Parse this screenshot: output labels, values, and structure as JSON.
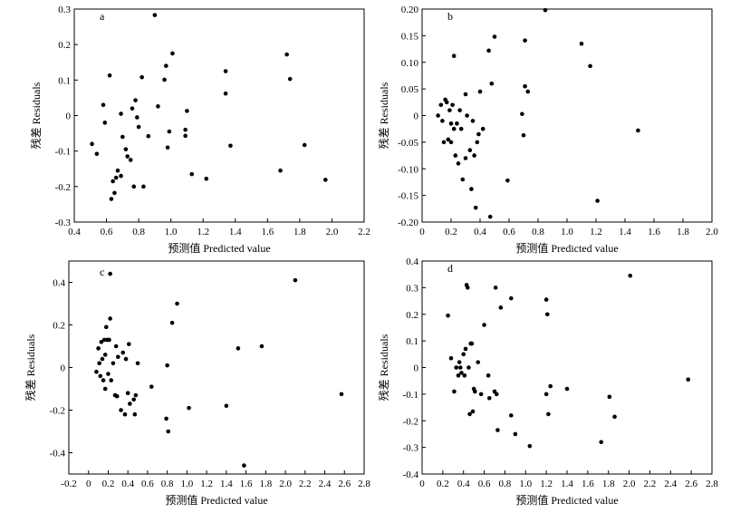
{
  "chart_data": [
    {
      "type": "scatter",
      "panel_label": "a",
      "xlabel": "预测值 Predicted value",
      "ylabel": "残差 Residuals",
      "xlim": [
        0.4,
        2.2
      ],
      "ylim": [
        -0.3,
        0.3
      ],
      "xticks": [
        "0.4",
        "0.6",
        "0.8",
        "1.0",
        "1.2",
        "1.4",
        "1.6",
        "1.8",
        "2.0",
        "2.2"
      ],
      "yticks": [
        "-0.3",
        "-0.2",
        "-0.1",
        "0",
        "0.1",
        "0.2",
        "0.3"
      ],
      "points": [
        [
          0.51,
          -0.08
        ],
        [
          0.54,
          -0.108
        ],
        [
          0.58,
          0.03
        ],
        [
          0.59,
          -0.02
        ],
        [
          0.62,
          0.113
        ],
        [
          0.63,
          -0.235
        ],
        [
          0.64,
          -0.185
        ],
        [
          0.65,
          -0.218
        ],
        [
          0.66,
          -0.175
        ],
        [
          0.67,
          -0.155
        ],
        [
          0.69,
          -0.17
        ],
        [
          0.69,
          0.005
        ],
        [
          0.7,
          -0.06
        ],
        [
          0.72,
          -0.095
        ],
        [
          0.73,
          -0.115
        ],
        [
          0.75,
          -0.125
        ],
        [
          0.76,
          0.02
        ],
        [
          0.77,
          -0.2
        ],
        [
          0.78,
          0.043
        ],
        [
          0.79,
          -0.005
        ],
        [
          0.8,
          -0.032
        ],
        [
          0.82,
          0.108
        ],
        [
          0.83,
          -0.2
        ],
        [
          0.86,
          -0.058
        ],
        [
          0.9,
          0.283
        ],
        [
          0.92,
          0.026
        ],
        [
          0.96,
          0.101
        ],
        [
          0.97,
          0.14
        ],
        [
          0.98,
          -0.09
        ],
        [
          0.99,
          -0.045
        ],
        [
          1.01,
          0.175
        ],
        [
          1.09,
          -0.057
        ],
        [
          1.09,
          -0.04
        ],
        [
          1.1,
          0.013
        ],
        [
          1.13,
          -0.165
        ],
        [
          1.22,
          -0.178
        ],
        [
          1.34,
          0.125
        ],
        [
          1.34,
          0.062
        ],
        [
          1.37,
          -0.085
        ],
        [
          1.68,
          -0.155
        ],
        [
          1.72,
          0.172
        ],
        [
          1.74,
          0.103
        ],
        [
          1.83,
          -0.083
        ],
        [
          1.96,
          -0.181
        ]
      ]
    },
    {
      "type": "scatter",
      "panel_label": "b",
      "xlabel": "预测值 Predicted value",
      "ylabel": "残差 Residuals",
      "xlim": [
        0,
        2.0
      ],
      "ylim": [
        -0.2,
        0.2
      ],
      "xticks": [
        "0",
        "0.2",
        "0.4",
        "0.6",
        "0.8",
        "1.0",
        "1.2",
        "1.4",
        "1.6",
        "1.8",
        "2.0"
      ],
      "yticks": [
        "-0.20",
        "-0.15",
        "-0.10",
        "-0.05",
        "0",
        "0.05",
        "0.10",
        "0.15",
        "0.20"
      ],
      "points": [
        [
          0.11,
          0.0
        ],
        [
          0.13,
          0.02
        ],
        [
          0.14,
          -0.01
        ],
        [
          0.15,
          -0.05
        ],
        [
          0.16,
          0.03
        ],
        [
          0.17,
          0.025
        ],
        [
          0.18,
          -0.045
        ],
        [
          0.19,
          0.01
        ],
        [
          0.2,
          -0.015
        ],
        [
          0.2,
          -0.05
        ],
        [
          0.21,
          0.02
        ],
        [
          0.22,
          -0.025
        ],
        [
          0.22,
          0.112
        ],
        [
          0.23,
          -0.075
        ],
        [
          0.24,
          -0.015
        ],
        [
          0.25,
          -0.09
        ],
        [
          0.26,
          0.01
        ],
        [
          0.27,
          -0.025
        ],
        [
          0.28,
          -0.12
        ],
        [
          0.3,
          -0.08
        ],
        [
          0.3,
          0.04
        ],
        [
          0.31,
          0.0
        ],
        [
          0.33,
          -0.065
        ],
        [
          0.34,
          -0.138
        ],
        [
          0.35,
          -0.01
        ],
        [
          0.36,
          -0.075
        ],
        [
          0.37,
          -0.173
        ],
        [
          0.38,
          -0.05
        ],
        [
          0.39,
          -0.035
        ],
        [
          0.4,
          0.045
        ],
        [
          0.42,
          -0.025
        ],
        [
          0.46,
          0.122
        ],
        [
          0.47,
          -0.19
        ],
        [
          0.48,
          0.06
        ],
        [
          0.5,
          0.148
        ],
        [
          0.59,
          -0.122
        ],
        [
          0.69,
          0.003
        ],
        [
          0.7,
          -0.037
        ],
        [
          0.71,
          0.141
        ],
        [
          0.71,
          0.055
        ],
        [
          0.73,
          0.045
        ],
        [
          0.85,
          0.198
        ],
        [
          1.1,
          0.135
        ],
        [
          1.16,
          0.093
        ],
        [
          1.21,
          -0.16
        ],
        [
          1.49,
          -0.028
        ]
      ]
    },
    {
      "type": "scatter",
      "panel_label": "c",
      "xlabel": "预测值 Predicted value",
      "ylabel": "残差 Residuals",
      "xlim": [
        -0.2,
        2.8
      ],
      "ylim": [
        -0.5,
        0.5
      ],
      "xticks": [
        "-0.2",
        "0",
        "0.2",
        "0.4",
        "0.6",
        "0.8",
        "1.0",
        "1.2",
        "1.4",
        "1.6",
        "1.8",
        "2.0",
        "2.2",
        "2.4",
        "2.6",
        "2.8"
      ],
      "yticks": [
        "-0.4",
        "-0.2",
        "0",
        "0.2",
        "0.4"
      ],
      "points": [
        [
          0.08,
          -0.02
        ],
        [
          0.1,
          0.09
        ],
        [
          0.11,
          0.02
        ],
        [
          0.12,
          -0.04
        ],
        [
          0.13,
          0.12
        ],
        [
          0.14,
          0.04
        ],
        [
          0.15,
          -0.06
        ],
        [
          0.16,
          0.13
        ],
        [
          0.17,
          0.06
        ],
        [
          0.17,
          -0.1
        ],
        [
          0.18,
          0.19
        ],
        [
          0.19,
          0.13
        ],
        [
          0.2,
          -0.03
        ],
        [
          0.21,
          0.13
        ],
        [
          0.22,
          0.23
        ],
        [
          0.22,
          0.44
        ],
        [
          0.23,
          -0.06
        ],
        [
          0.25,
          0.02
        ],
        [
          0.27,
          -0.13
        ],
        [
          0.28,
          0.1
        ],
        [
          0.29,
          -0.135
        ],
        [
          0.3,
          0.05
        ],
        [
          0.33,
          -0.2
        ],
        [
          0.35,
          0.07
        ],
        [
          0.37,
          -0.22
        ],
        [
          0.38,
          0.04
        ],
        [
          0.4,
          -0.12
        ],
        [
          0.41,
          0.11
        ],
        [
          0.42,
          -0.17
        ],
        [
          0.46,
          -0.15
        ],
        [
          0.47,
          -0.22
        ],
        [
          0.48,
          -0.13
        ],
        [
          0.5,
          0.02
        ],
        [
          0.64,
          -0.09
        ],
        [
          0.79,
          -0.24
        ],
        [
          0.8,
          0.01
        ],
        [
          0.81,
          -0.3
        ],
        [
          0.85,
          0.21
        ],
        [
          0.9,
          0.3
        ],
        [
          1.02,
          -0.19
        ],
        [
          1.4,
          -0.18
        ],
        [
          1.52,
          0.09
        ],
        [
          1.58,
          -0.46
        ],
        [
          1.76,
          0.1
        ],
        [
          2.1,
          0.41
        ],
        [
          2.57,
          -0.125
        ]
      ]
    },
    {
      "type": "scatter",
      "panel_label": "d",
      "xlabel": "预测值 Predicted value",
      "ylabel": "残差 Residuals",
      "xlim": [
        0,
        2.8
      ],
      "ylim": [
        -0.4,
        0.4
      ],
      "xticks": [
        "0",
        "0.2",
        "0.4",
        "0.6",
        "0.8",
        "1.0",
        "1.2",
        "1.4",
        "1.6",
        "1.8",
        "2.0",
        "2.2",
        "2.4",
        "2.6",
        "2.8"
      ],
      "yticks": [
        "-0.4",
        "-0.3",
        "-0.2",
        "-0.1",
        "0",
        "0.1",
        "0.2",
        "0.3",
        "0.4"
      ],
      "points": [
        [
          0.25,
          0.195
        ],
        [
          0.28,
          0.035
        ],
        [
          0.31,
          -0.09
        ],
        [
          0.33,
          0.0
        ],
        [
          0.35,
          -0.03
        ],
        [
          0.36,
          0.02
        ],
        [
          0.37,
          0.0
        ],
        [
          0.38,
          -0.02
        ],
        [
          0.4,
          0.05
        ],
        [
          0.41,
          -0.03
        ],
        [
          0.42,
          0.07
        ],
        [
          0.43,
          0.31
        ],
        [
          0.44,
          0.3
        ],
        [
          0.45,
          0.0
        ],
        [
          0.46,
          -0.175
        ],
        [
          0.47,
          0.09
        ],
        [
          0.48,
          0.09
        ],
        [
          0.49,
          -0.165
        ],
        [
          0.5,
          -0.08
        ],
        [
          0.51,
          -0.09
        ],
        [
          0.54,
          0.02
        ],
        [
          0.57,
          -0.1
        ],
        [
          0.6,
          0.16
        ],
        [
          0.64,
          -0.03
        ],
        [
          0.65,
          -0.115
        ],
        [
          0.7,
          -0.09
        ],
        [
          0.71,
          0.3
        ],
        [
          0.72,
          -0.1
        ],
        [
          0.73,
          -0.235
        ],
        [
          0.76,
          0.225
        ],
        [
          0.86,
          0.26
        ],
        [
          0.86,
          -0.18
        ],
        [
          0.9,
          -0.25
        ],
        [
          1.04,
          -0.295
        ],
        [
          1.2,
          0.255
        ],
        [
          1.2,
          -0.1
        ],
        [
          1.21,
          0.2
        ],
        [
          1.22,
          -0.175
        ],
        [
          1.24,
          -0.07
        ],
        [
          1.4,
          -0.08
        ],
        [
          1.73,
          -0.28
        ],
        [
          1.81,
          -0.11
        ],
        [
          1.86,
          -0.185
        ],
        [
          2.01,
          0.345
        ],
        [
          2.57,
          -0.045
        ]
      ]
    }
  ]
}
